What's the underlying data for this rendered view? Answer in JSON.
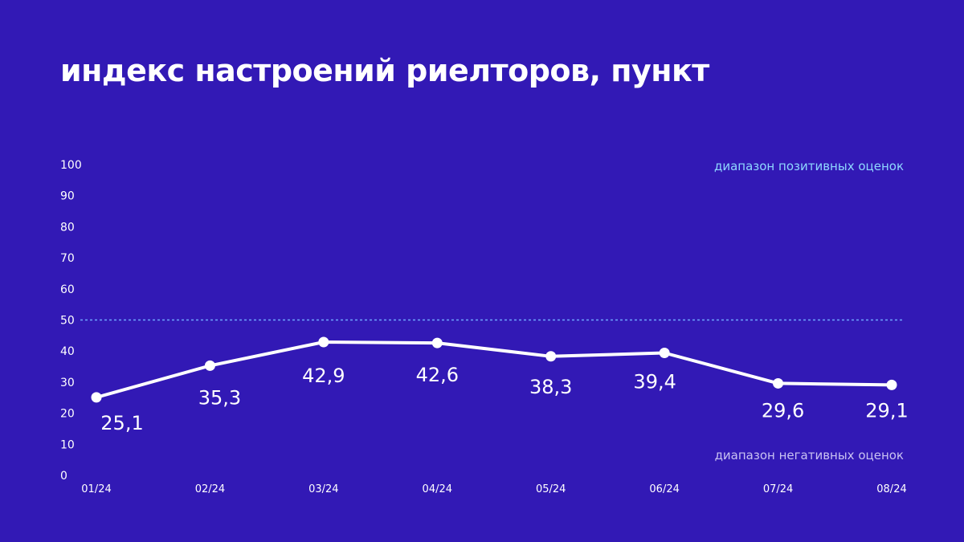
{
  "title": "индекс настроений риелторов, пункт",
  "colors": {
    "background": "#3219b5",
    "line": "#ffffff",
    "threshold": "#6fa8ff",
    "positive_label": "#8fd8ff",
    "negative_label": "#c9c2f2"
  },
  "chart_data": {
    "type": "line",
    "title": "индекс настроений риелторов, пункт",
    "categories": [
      "01/24",
      "02/24",
      "03/24",
      "04/24",
      "05/24",
      "06/24",
      "07/24",
      "08/24"
    ],
    "values": [
      25.1,
      35.3,
      42.9,
      42.6,
      38.3,
      39.4,
      29.6,
      29.1
    ],
    "value_labels": [
      "25,1",
      "35,3",
      "42,9",
      "42,6",
      "38,3",
      "39,4",
      "29,6",
      "29,1"
    ],
    "yticks": [
      0,
      10,
      20,
      30,
      40,
      50,
      60,
      70,
      80,
      90,
      100
    ],
    "ylim": [
      0,
      100
    ],
    "threshold": 50,
    "annotations": {
      "positive": "диапазон позитивных оценок",
      "negative": "диапазон негативных оценок"
    },
    "grid": false
  }
}
